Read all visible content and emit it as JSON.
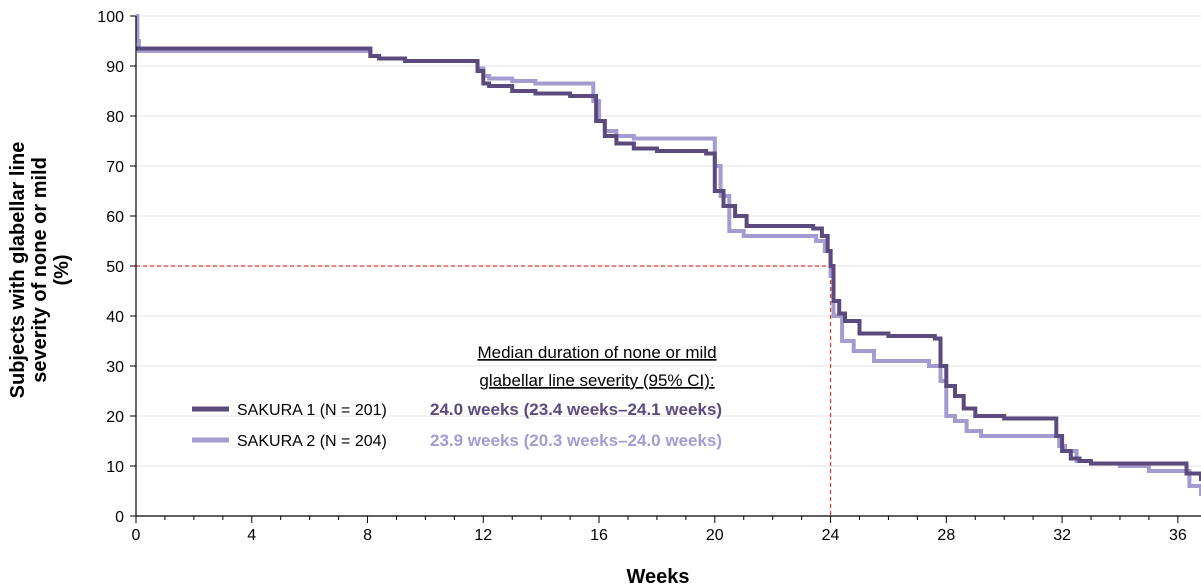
{
  "chart_data": {
    "type": "line",
    "xlabel": "Weeks",
    "ylabel_lines": [
      "Subjects with glabellar line",
      "severity of none or mild",
      "(%)"
    ],
    "xlim": [
      0,
      36.8
    ],
    "ylim": [
      0,
      100
    ],
    "x_ticks": [
      "0",
      "4",
      "8",
      "12",
      "16",
      "20",
      "24",
      "28",
      "32",
      "36"
    ],
    "y_ticks": [
      "0",
      "10",
      "20",
      "30",
      "40",
      "50",
      "60",
      "70",
      "80",
      "90",
      "100"
    ],
    "grid": "horizontal",
    "legend_header": [
      "Median duration of none or mild",
      "glabellar line severity (95% CI):"
    ],
    "reference_lines": {
      "y": 50,
      "x": 24,
      "color": "#e03a2f"
    },
    "series": [
      {
        "name": "SAKURA 1 (N = 201)",
        "median": "24.0 weeks (23.4 weeks–24.1 weeks)",
        "color": "#5b4a7e",
        "x": [
          0,
          0.1,
          7.9,
          8.1,
          8.4,
          9.3,
          11.5,
          11.8,
          12.0,
          12.2,
          13.0,
          13.8,
          15.0,
          15.9,
          16.2,
          16.6,
          17.2,
          18.0,
          19.7,
          20.0,
          20.3,
          20.7,
          21.1,
          23.4,
          23.7,
          23.9,
          24.0,
          24.1,
          24.3,
          24.5,
          25.0,
          26.0,
          27.6,
          27.8,
          28.0,
          28.3,
          28.6,
          29.0,
          30.0,
          31.5,
          31.8,
          32.0,
          32.3,
          32.6,
          33.0,
          34.0,
          35.0,
          36.3,
          36.8
        ],
        "y": [
          93.5,
          93.5,
          93.5,
          92.0,
          91.5,
          91.0,
          91.0,
          89.0,
          86.5,
          86.0,
          85.0,
          84.5,
          84.0,
          79.0,
          76.0,
          74.5,
          73.5,
          73.0,
          72.5,
          65.0,
          62.0,
          60.0,
          58.0,
          57.5,
          56.0,
          53.0,
          50.0,
          43.0,
          40.5,
          39.0,
          36.5,
          36.0,
          35.5,
          30.0,
          26.0,
          24.0,
          21.5,
          20.0,
          19.5,
          19.5,
          16.0,
          13.0,
          11.5,
          11.0,
          10.5,
          10.5,
          10.5,
          8.5,
          7.0
        ]
      },
      {
        "name": "SAKURA 2 (N = 204)",
        "median": "23.9 weeks (20.3 weeks–24.0 weeks)",
        "color": "#a49bd0",
        "x": [
          0,
          0.05,
          0.1,
          7.9,
          8.1,
          8.4,
          9.3,
          11.5,
          11.8,
          12.0,
          12.2,
          13.0,
          13.8,
          15.5,
          15.8,
          16.0,
          16.2,
          16.6,
          17.2,
          18.0,
          19.7,
          20.0,
          20.2,
          20.5,
          21.0,
          23.5,
          23.8,
          24.0,
          24.1,
          24.4,
          24.8,
          25.5,
          27.4,
          27.8,
          28.0,
          28.3,
          28.7,
          29.2,
          31.6,
          31.9,
          32.1,
          32.5,
          33.0,
          34.0,
          35.0,
          36.4,
          36.8
        ],
        "y": [
          100,
          95.0,
          93.0,
          93.0,
          92.0,
          91.5,
          91.0,
          91.0,
          89.5,
          88.0,
          87.5,
          87.0,
          86.5,
          86.5,
          83.0,
          79.0,
          77.0,
          76.0,
          75.5,
          75.5,
          75.5,
          70.0,
          64.0,
          57.0,
          56.0,
          55.0,
          53.0,
          48.0,
          40.0,
          35.0,
          33.0,
          31.0,
          30.0,
          27.0,
          20.0,
          19.0,
          17.0,
          16.0,
          16.0,
          14.0,
          13.0,
          11.0,
          10.5,
          10.0,
          9.0,
          6.0,
          4.0
        ]
      }
    ]
  }
}
